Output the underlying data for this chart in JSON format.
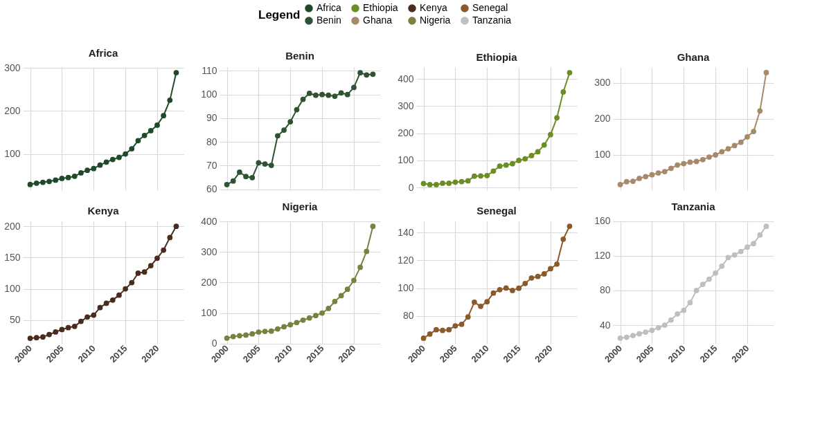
{
  "chart_data": [
    {
      "type": "line",
      "title": "Africa",
      "legend": "top",
      "legend_title": "Legend",
      "marker": "circle",
      "line_style": "solid",
      "grid": true,
      "tick_labels": "y",
      "x": [
        2000,
        2001,
        2002,
        2003,
        2004,
        2005,
        2006,
        2007,
        2008,
        2009,
        2010,
        2011,
        2012,
        2013,
        2014,
        2015,
        2016,
        2017,
        2018,
        2019,
        2020,
        2021,
        2022,
        2023
      ],
      "xlim": [
        1998.85,
        2024.15
      ],
      "xticks": [
        2000,
        2005,
        2010,
        2015,
        2020
      ],
      "ylim": [
        15.6,
        302
      ],
      "yticks": [
        100,
        200,
        300
      ],
      "series": [
        {
          "name": "Africa",
          "color": "#1f4a2a",
          "values": [
            29,
            32,
            34,
            36,
            39,
            43,
            45,
            48,
            56,
            62,
            66,
            74,
            81,
            87,
            92,
            100,
            112,
            131,
            143,
            154,
            167,
            189,
            225,
            289
          ]
        }
      ]
    },
    {
      "type": "line",
      "title": "Benin",
      "marker": "circle",
      "line_style": "solid",
      "grid": true,
      "tick_labels": "y",
      "x": [
        2000,
        2001,
        2002,
        2003,
        2004,
        2005,
        2006,
        2007,
        2008,
        2009,
        2010,
        2011,
        2012,
        2013,
        2014,
        2015,
        2016,
        2017,
        2018,
        2019,
        2020,
        2021,
        2022,
        2023
      ],
      "xlim": [
        1998.85,
        2024.15
      ],
      "xticks": [
        2000,
        2005,
        2010,
        2015,
        2020
      ],
      "ylim": [
        59.6,
        111.6
      ],
      "yticks": [
        60,
        70,
        80,
        90,
        100,
        110
      ],
      "series": [
        {
          "name": "Benin",
          "color": "#2f5233",
          "values": [
            62.0,
            63.5,
            67.2,
            65.4,
            64.9,
            71.2,
            70.7,
            70.1,
            82.6,
            85.0,
            88.5,
            93.6,
            98.0,
            100.5,
            99.7,
            100,
            99.7,
            99.3,
            100.7,
            100,
            103,
            109.2,
            108.3,
            108.6
          ]
        }
      ]
    },
    {
      "type": "line",
      "title": "Ethiopia",
      "marker": "circle",
      "line_style": "solid",
      "grid": true,
      "tick_labels": "y",
      "x": [
        2000,
        2001,
        2002,
        2003,
        2004,
        2005,
        2006,
        2007,
        2008,
        2009,
        2010,
        2011,
        2012,
        2013,
        2014,
        2015,
        2016,
        2017,
        2018,
        2019,
        2020,
        2021,
        2022,
        2023
      ],
      "xlim": [
        1998.85,
        2024.15
      ],
      "xticks": [
        2000,
        2005,
        2010,
        2015,
        2020
      ],
      "ylim": [
        -9.6,
        443.6
      ],
      "yticks": [
        0,
        100,
        200,
        300,
        400
      ],
      "series": [
        {
          "name": "Ethiopia",
          "color": "#6b8e23",
          "values": [
            15,
            11,
            11,
            16,
            16,
            20,
            22,
            25,
            42,
            43,
            44,
            61,
            79,
            83,
            88,
            100,
            106,
            118,
            132,
            157,
            195,
            257,
            352,
            423
          ]
        }
      ]
    },
    {
      "type": "line",
      "title": "Ghana",
      "marker": "circle",
      "line_style": "solid",
      "grid": true,
      "tick_labels": "y",
      "x": [
        2000,
        2001,
        2002,
        2003,
        2004,
        2005,
        2006,
        2007,
        2008,
        2009,
        2010,
        2011,
        2012,
        2013,
        2014,
        2015,
        2016,
        2017,
        2018,
        2019,
        2020,
        2021,
        2022,
        2023
      ],
      "xlim": [
        1998.85,
        2024.15
      ],
      "xticks": [
        2000,
        2005,
        2010,
        2015,
        2020
      ],
      "ylim": [
        2.3,
        343.2
      ],
      "yticks": [
        100,
        200,
        300
      ],
      "series": [
        {
          "name": "Ghana",
          "color": "#a68a6a",
          "values": [
            18,
            26,
            27,
            35,
            40,
            45,
            50,
            54,
            63,
            72,
            76,
            80,
            82,
            87,
            94,
            100,
            109,
            117,
            126,
            135,
            150,
            165,
            222,
            328
          ]
        }
      ]
    },
    {
      "type": "line",
      "title": "Kenya",
      "marker": "circle",
      "line_style": "solid",
      "grid": true,
      "x": [
        2000,
        2001,
        2002,
        2003,
        2004,
        2005,
        2006,
        2007,
        2008,
        2009,
        2010,
        2011,
        2012,
        2013,
        2014,
        2015,
        2016,
        2017,
        2018,
        2019,
        2020,
        2021,
        2022,
        2023
      ],
      "xlim": [
        1998.85,
        2024.15
      ],
      "xticks": [
        2000,
        2005,
        2010,
        2015,
        2020
      ],
      "ylim": [
        12.2,
        209
      ],
      "yticks": [
        50,
        100,
        150,
        200
      ],
      "series": [
        {
          "name": "Kenya",
          "color": "#4a2c1e",
          "values": [
            21,
            22,
            23,
            27,
            31,
            35,
            38,
            40,
            48,
            55,
            58,
            70,
            77,
            82,
            90,
            100,
            110,
            125,
            127,
            137,
            149,
            162,
            182,
            200
          ]
        }
      ]
    },
    {
      "type": "line",
      "title": "Nigeria",
      "marker": "circle",
      "line_style": "solid",
      "grid": true,
      "x": [
        2000,
        2001,
        2002,
        2003,
        2004,
        2005,
        2006,
        2007,
        2008,
        2009,
        2010,
        2011,
        2012,
        2013,
        2014,
        2015,
        2016,
        2017,
        2018,
        2019,
        2020,
        2021,
        2022,
        2023
      ],
      "xlim": [
        1998.85,
        2024.15
      ],
      "xticks": [
        2000,
        2005,
        2010,
        2015,
        2020
      ],
      "ylim": [
        -0.5,
        402.6
      ],
      "yticks": [
        0,
        100,
        200,
        300,
        400
      ],
      "series": [
        {
          "name": "Nigeria",
          "color": "#7a8040",
          "values": [
            18,
            23,
            26,
            28,
            32,
            38,
            40,
            41,
            48,
            55,
            62,
            69,
            77,
            84,
            92,
            100,
            115,
            138,
            157,
            178,
            207,
            250,
            302,
            384
          ]
        }
      ]
    },
    {
      "type": "line",
      "title": "Senegal",
      "marker": "circle",
      "line_style": "solid",
      "grid": true,
      "x": [
        2000,
        2001,
        2002,
        2003,
        2004,
        2005,
        2006,
        2007,
        2008,
        2009,
        2010,
        2011,
        2012,
        2013,
        2014,
        2015,
        2016,
        2017,
        2018,
        2019,
        2020,
        2021,
        2022,
        2023
      ],
      "xlim": [
        1998.85,
        2024.15
      ],
      "xticks": [
        2000,
        2005,
        2010,
        2015,
        2020
      ],
      "ylim": [
        60.1,
        148.5
      ],
      "yticks": [
        80,
        100,
        120,
        140
      ],
      "series": [
        {
          "name": "Senegal",
          "color": "#8b5a2b",
          "values": [
            64.1,
            67.1,
            70.2,
            69.7,
            70.2,
            73,
            74.1,
            79.4,
            90,
            87,
            90.3,
            96.5,
            98.9,
            100.1,
            98.4,
            100,
            103.4,
            107.4,
            108.4,
            110.3,
            114,
            117.3,
            135.2,
            144.5
          ]
        }
      ]
    },
    {
      "type": "line",
      "title": "Tanzania",
      "marker": "circle",
      "line_style": "solid",
      "grid": true,
      "x": [
        2000,
        2001,
        2002,
        2003,
        2004,
        2005,
        2006,
        2007,
        2008,
        2009,
        2010,
        2011,
        2012,
        2013,
        2014,
        2015,
        2016,
        2017,
        2018,
        2019,
        2020,
        2021,
        2022,
        2023
      ],
      "xlim": [
        1998.85,
        2024.15
      ],
      "xticks": [
        2000,
        2005,
        2010,
        2015,
        2020
      ],
      "ylim": [
        18.5,
        160.5
      ],
      "yticks": [
        40,
        80,
        120,
        160
      ],
      "series": [
        {
          "name": "Tanzania",
          "color": "#bfbfbf",
          "values": [
            25,
            26,
            28,
            30,
            32,
            34,
            37,
            40,
            46,
            53,
            57,
            66,
            80,
            87,
            93,
            100,
            108,
            118,
            121,
            125,
            130,
            134,
            144,
            154
          ]
        }
      ]
    }
  ]
}
